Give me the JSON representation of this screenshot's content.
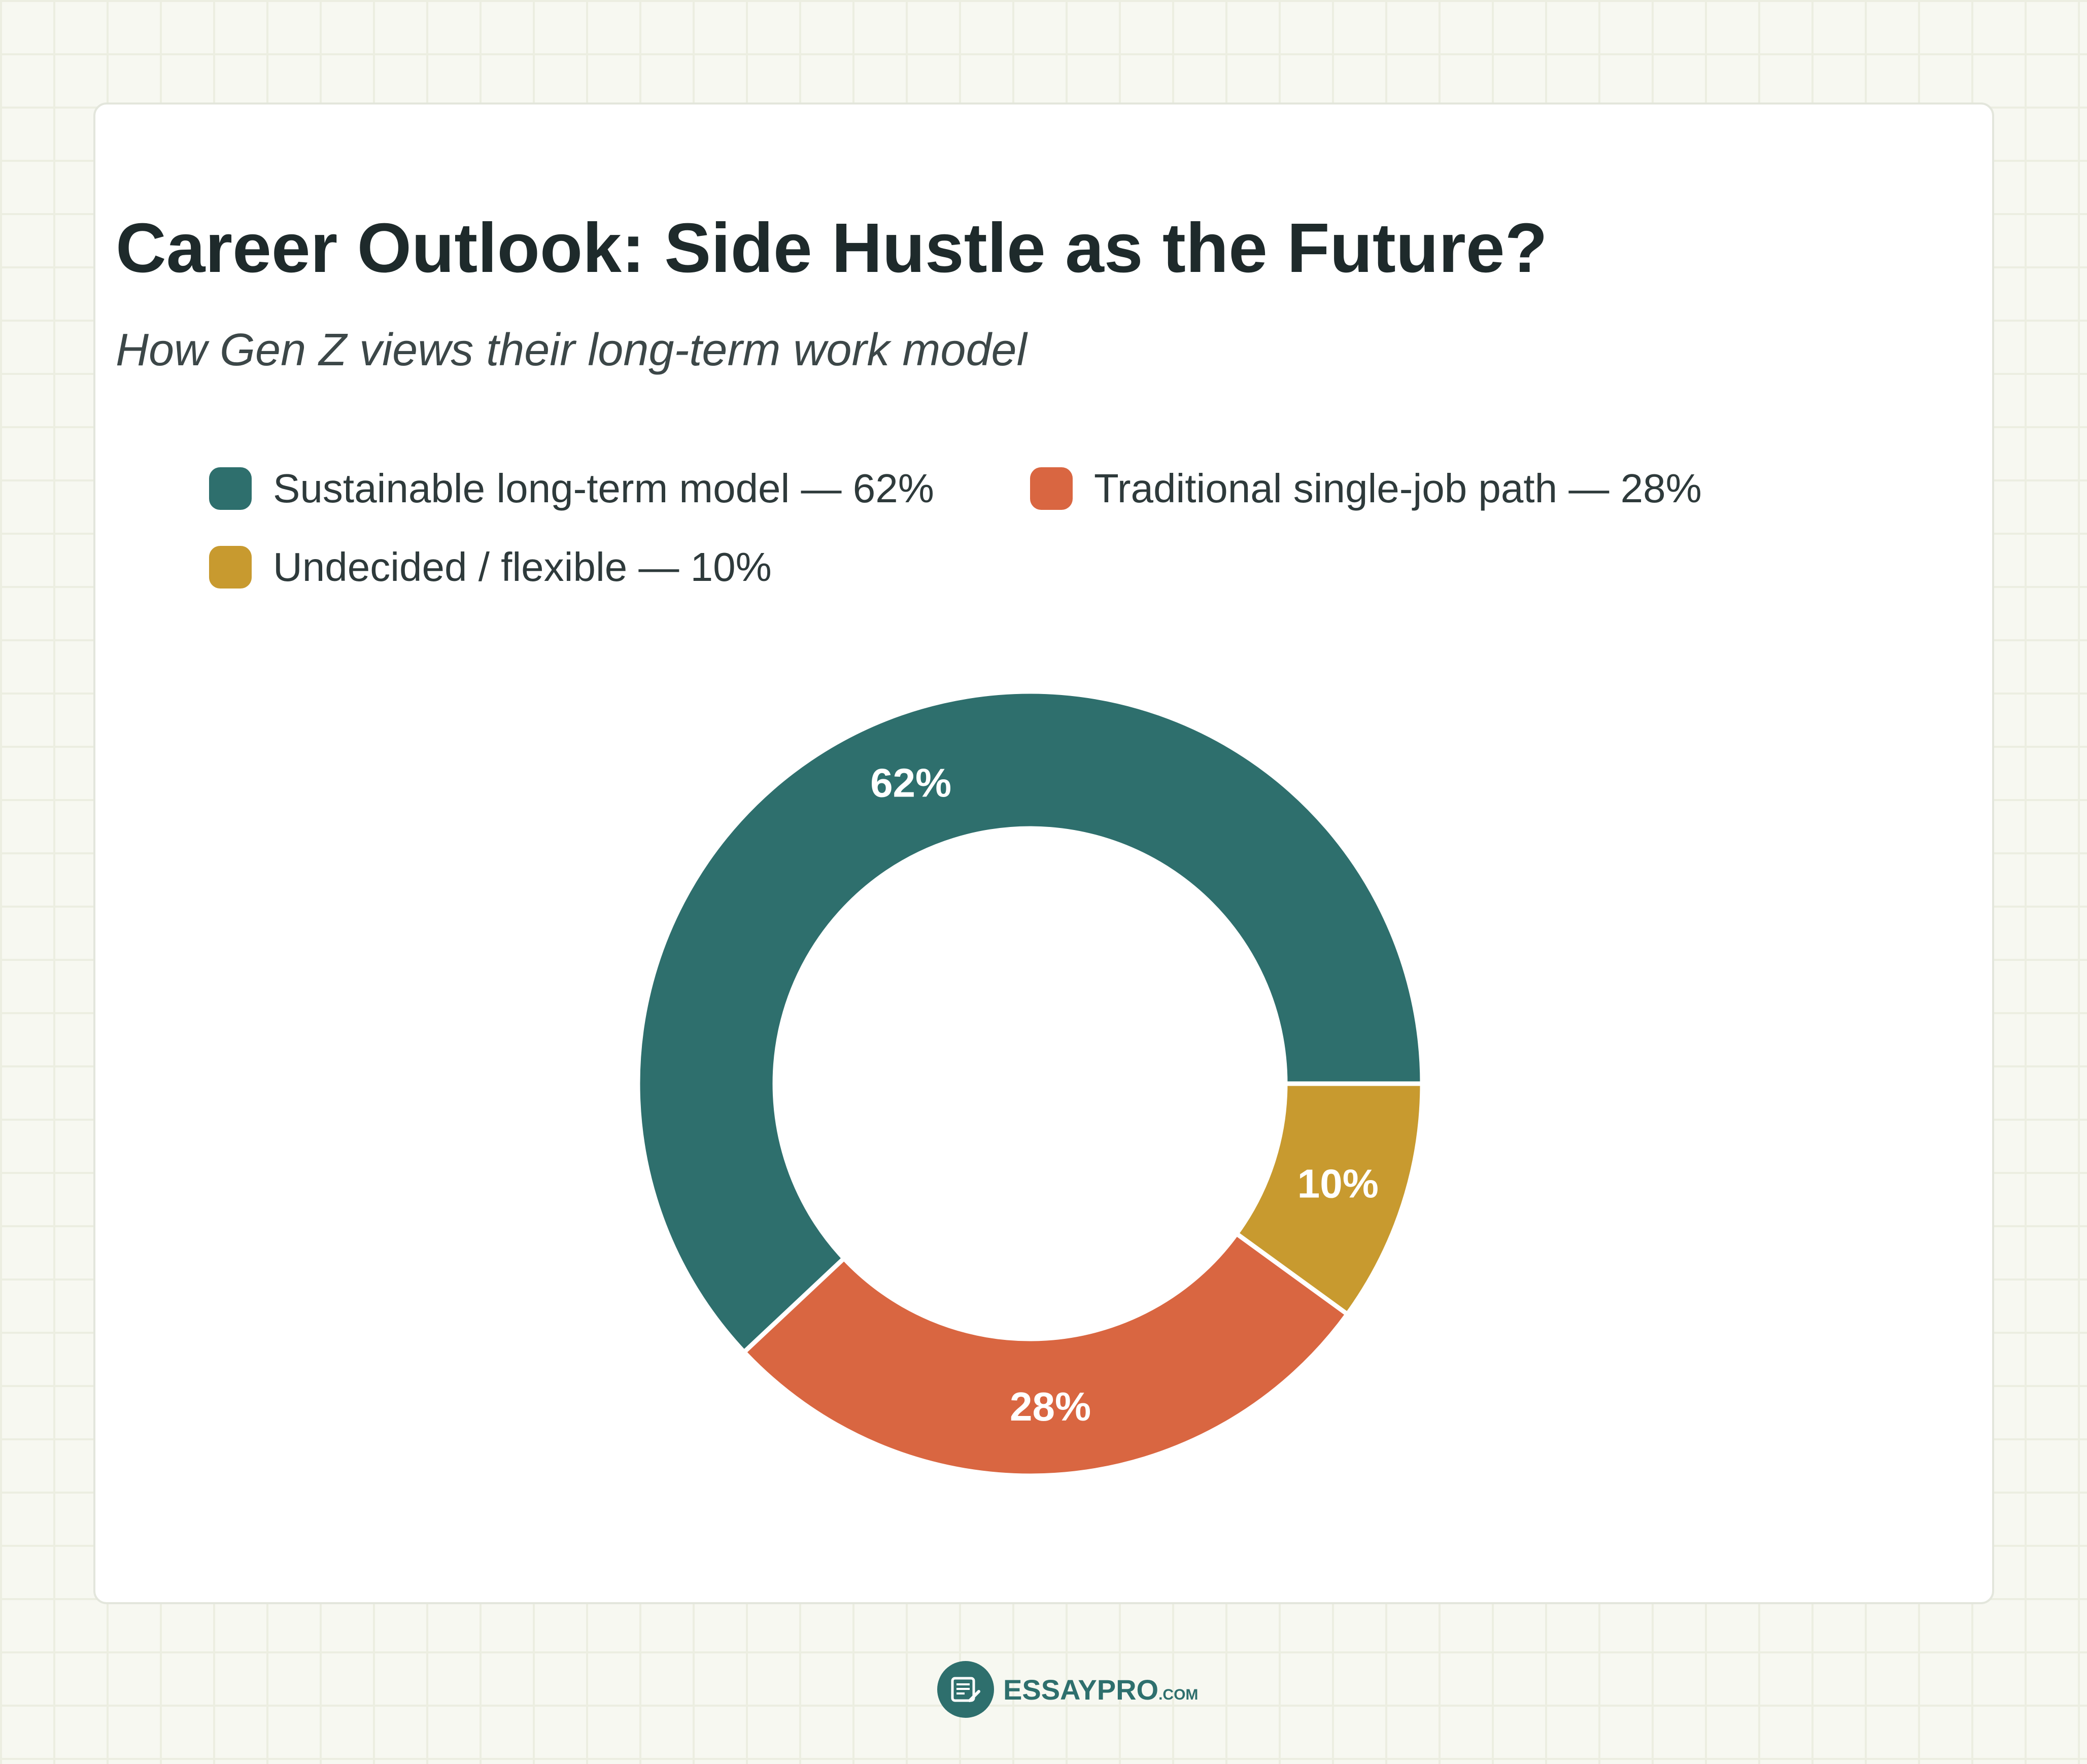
{
  "header": {
    "title": "Career Outlook: Side Hustle as the Future?",
    "subtitle": "How Gen Z views their long-term work model"
  },
  "legend": [
    {
      "label": "Sustainable long-term model — 62%",
      "color": "#2e6f6d"
    },
    {
      "label": "Traditional single-job path — 28%",
      "color": "#d96641"
    },
    {
      "label": "Undecided / flexible — 10%",
      "color": "#c89a2f"
    }
  ],
  "chart_data": {
    "type": "pie",
    "title": "Career Outlook: Side Hustle as the Future?",
    "subtitle": "How Gen Z views their long-term work model",
    "categories": [
      "Sustainable long-term model",
      "Traditional single-job path",
      "Undecided / flexible"
    ],
    "values": [
      62,
      28,
      10
    ],
    "data_labels": [
      "62%",
      "28%",
      "10%"
    ],
    "colors": [
      "#2e6f6d",
      "#d96641",
      "#c89a2f"
    ],
    "donut": true,
    "start": "right (3 o'clock)",
    "direction": "counter-clockwise",
    "legend_position": "top-left"
  },
  "footer": {
    "logo_part1": "ESSAY",
    "logo_part2": "PRO",
    "logo_tld": ".COM",
    "logo_icon": "essay-document-pen-icon"
  }
}
